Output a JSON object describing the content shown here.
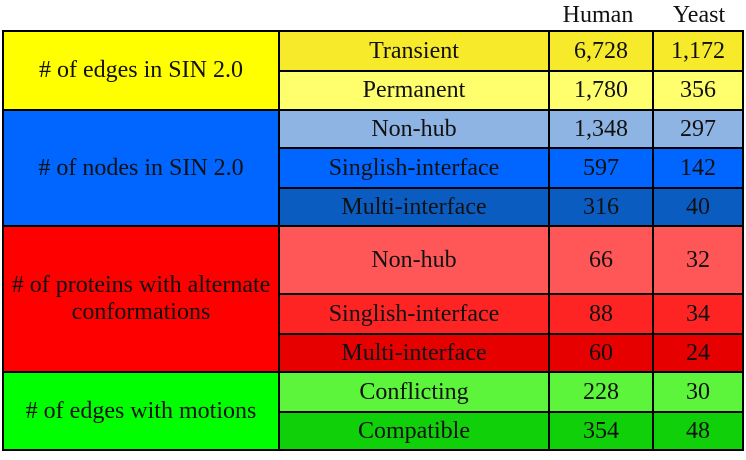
{
  "headers": {
    "human": "Human",
    "yeast": "Yeast"
  },
  "groups": [
    {
      "label": "# of edges in SIN 2.0",
      "color": "#ffff00",
      "rows": [
        {
          "label": "Transient",
          "human": "6,728",
          "yeast": "1,172",
          "color": "#f6ea2b"
        },
        {
          "label": "Permanent",
          "human": "1,780",
          "yeast": "356",
          "color": "#ffff6e"
        }
      ]
    },
    {
      "label": "# of nodes in SIN 2.0",
      "color": "#0066ff",
      "rows": [
        {
          "label": "Non-hub",
          "human": "1,348",
          "yeast": "297",
          "color": "#8eb4e3"
        },
        {
          "label": "Singlish-interface",
          "human": "597",
          "yeast": "142",
          "color": "#0066ff"
        },
        {
          "label": "Multi-interface",
          "human": "316",
          "yeast": "40",
          "color": "#0b5cc0"
        }
      ]
    },
    {
      "label": "# of proteins with alternate conformations",
      "color": "#ff0000",
      "rows": [
        {
          "label": "Non-hub",
          "human": "66",
          "yeast": "32",
          "color": "#ff5757"
        },
        {
          "label": "Singlish-interface",
          "human": "88",
          "yeast": "34",
          "color": "#ff2424"
        },
        {
          "label": "Multi-interface",
          "human": "60",
          "yeast": "24",
          "color": "#e60000"
        }
      ]
    },
    {
      "label": "# of edges with motions",
      "color": "#00ff00",
      "rows": [
        {
          "label": "Conflicting",
          "human": "228",
          "yeast": "30",
          "color": "#5cf53b"
        },
        {
          "label": "Compatible",
          "human": "354",
          "yeast": "48",
          "color": "#10d00a"
        }
      ]
    }
  ]
}
